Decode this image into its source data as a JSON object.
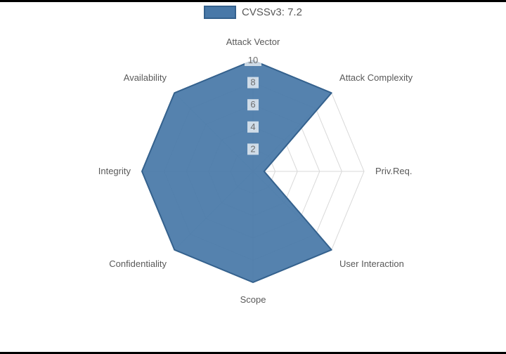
{
  "page": {
    "background": "#000000",
    "canvas_background": "#ffffff"
  },
  "legend": {
    "label": "CVSSv3: 7.2",
    "swatch_fill": "#4878a8",
    "swatch_border": "#34618d"
  },
  "chart_data": {
    "type": "radar",
    "title": "CVSSv3: 7.2",
    "categories": [
      "Attack Vector",
      "Attack Complexity",
      "Priv.Req.",
      "User Interaction",
      "Scope",
      "Confidentiality",
      "Integrity",
      "Availability"
    ],
    "series": [
      {
        "name": "CVSSv3: 7.2",
        "values": [
          10,
          10,
          1,
          10,
          10,
          10,
          10,
          10
        ]
      }
    ],
    "ticks": [
      2,
      4,
      6,
      8,
      10
    ],
    "rmin": 0,
    "rmax": 10,
    "grid": true,
    "legend_position": "top",
    "colors": {
      "fill": "#4878a8",
      "fill_opacity": 0.93,
      "stroke": "#34618d",
      "grid": "#d9d9d9",
      "axis_label": "#595959",
      "tick_label": "#6e6e6e",
      "tick_backdrop": "rgba(255,255,255,0.72)"
    }
  }
}
